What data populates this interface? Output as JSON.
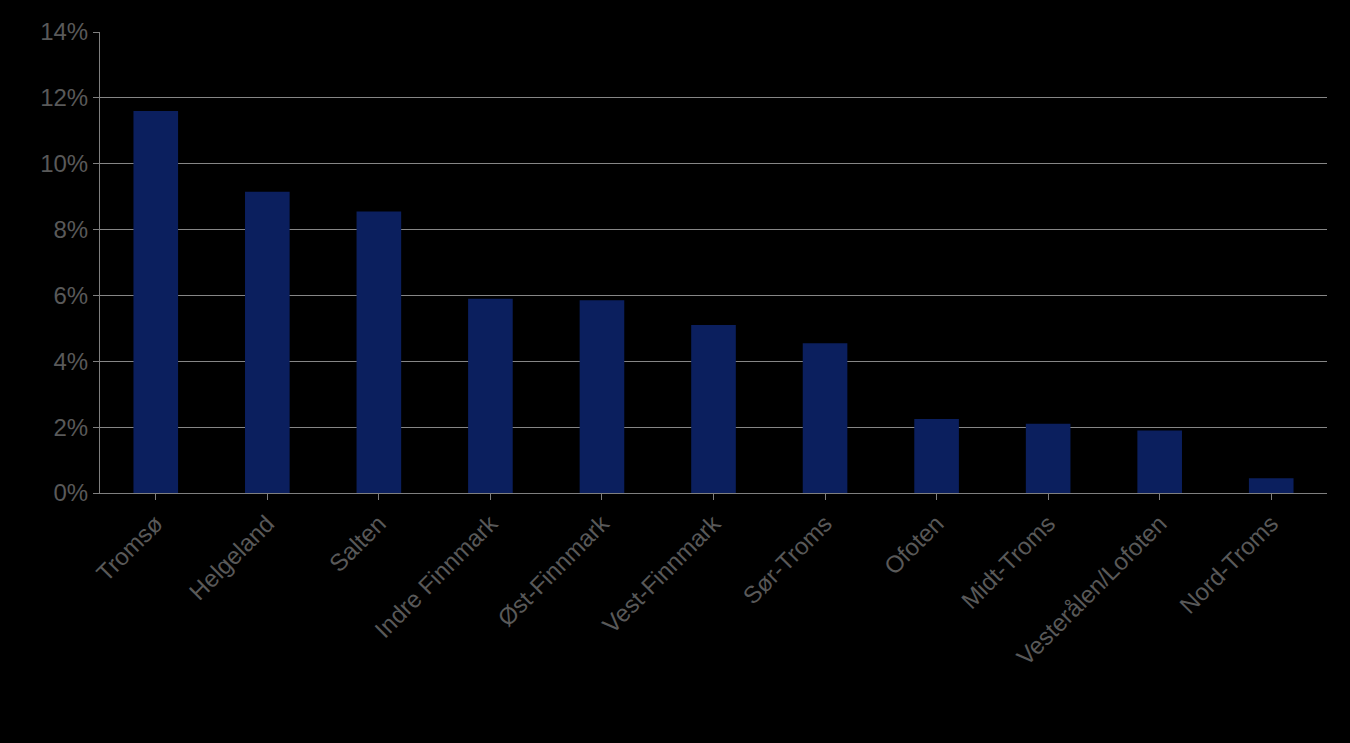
{
  "chart_data": {
    "type": "bar",
    "categories": [
      "Tromsø",
      "Helgeland",
      "Salten",
      "Indre Finnmark",
      "Øst-Finnmark",
      "Vest-Finnmark",
      "Sør-Troms",
      "Ofoten",
      "Midt-Troms",
      "Vesterålen/Lofoten",
      "Nord-Troms"
    ],
    "values": [
      11.6,
      9.15,
      8.55,
      5.9,
      5.85,
      5.1,
      4.55,
      2.25,
      2.1,
      1.9,
      0.45
    ],
    "color": "#0b1f5e",
    "ylim": [
      0,
      14
    ],
    "yticks": [
      {
        "value": 0,
        "label": "0%"
      },
      {
        "value": 2,
        "label": "2%"
      },
      {
        "value": 4,
        "label": "4%"
      },
      {
        "value": 6,
        "label": "6%"
      },
      {
        "value": 8,
        "label": "8%"
      },
      {
        "value": 10,
        "label": "10%"
      },
      {
        "value": 12,
        "label": "12%"
      },
      {
        "value": 14,
        "label": "14%"
      }
    ],
    "grid": true
  }
}
